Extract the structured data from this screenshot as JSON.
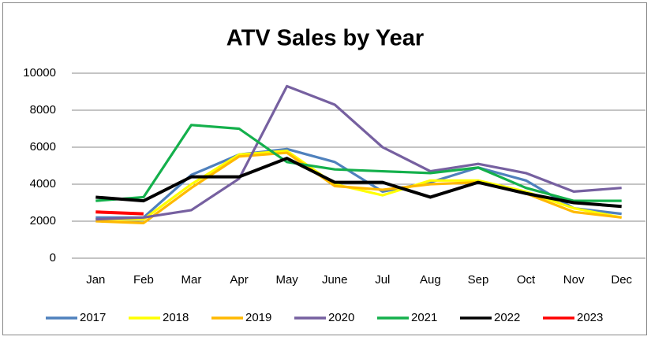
{
  "chart_data": {
    "type": "line",
    "title": "ATV Sales by Year",
    "categories": [
      "Jan",
      "Feb",
      "Mar",
      "Apr",
      "May",
      "June",
      "Jul",
      "Aug",
      "Sep",
      "Oct",
      "Nov",
      "Dec"
    ],
    "series": [
      {
        "name": "2017",
        "color": "#4f81bd",
        "values": [
          2200,
          2200,
          4500,
          5600,
          5900,
          5200,
          3600,
          4100,
          4900,
          4200,
          2700,
          2400
        ]
      },
      {
        "name": "2018",
        "color": "#ffff00",
        "values": [
          2100,
          2100,
          4000,
          5600,
          5800,
          4000,
          3400,
          4200,
          4200,
          3600,
          2700,
          2200
        ]
      },
      {
        "name": "2019",
        "color": "#ffb900",
        "values": [
          2000,
          1900,
          3800,
          5500,
          5700,
          3900,
          3700,
          4000,
          4100,
          3500,
          2500,
          2200
        ]
      },
      {
        "name": "2020",
        "color": "#7660a0",
        "values": [
          2100,
          2200,
          2600,
          4300,
          9300,
          8300,
          6000,
          4700,
          5100,
          4600,
          3600,
          3800
        ]
      },
      {
        "name": "2021",
        "color": "#14b04c",
        "values": [
          3100,
          3300,
          7200,
          7000,
          5200,
          4800,
          4700,
          4600,
          4900,
          3800,
          3100,
          3100
        ]
      },
      {
        "name": "2022",
        "color": "#000000",
        "values": [
          3300,
          3100,
          4400,
          4400,
          5400,
          4100,
          4100,
          3300,
          4100,
          3500,
          3000,
          2800
        ]
      },
      {
        "name": "2023",
        "color": "#ff0000",
        "values": [
          2500,
          2400,
          null,
          null,
          null,
          null,
          null,
          null,
          null,
          null,
          null,
          null
        ]
      }
    ],
    "ylim": [
      0,
      10000
    ],
    "yticks": [
      0,
      2000,
      4000,
      6000,
      8000,
      10000
    ],
    "grid": true,
    "legend": "bottom"
  }
}
